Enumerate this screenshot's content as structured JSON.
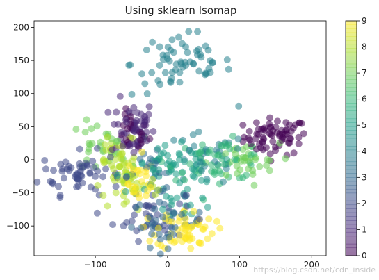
{
  "chart_data": {
    "type": "scatter",
    "title": "Using sklearn Isomap",
    "xlabel": "",
    "ylabel": "",
    "xlim": [
      -185,
      220
    ],
    "ylim": [
      -145,
      210
    ],
    "xticks": [
      -100,
      0,
      100,
      200
    ],
    "yticks": [
      -100,
      -50,
      0,
      50,
      100,
      150,
      200
    ],
    "colorbar": {
      "cmap": "viridis",
      "range": [
        0,
        9
      ],
      "ticks": [
        0,
        1,
        2,
        3,
        4,
        5,
        6,
        7,
        8,
        9
      ],
      "colors": [
        "#440154",
        "#482878",
        "#3e4989",
        "#31688e",
        "#26828e",
        "#1f9e89",
        "#35b779",
        "#6ece58",
        "#b5de2b",
        "#fde725"
      ]
    },
    "point_alpha": 0.55,
    "clusters": [
      {
        "digit": 0,
        "center": [
          150,
          35
        ],
        "spread": [
          22,
          14
        ],
        "count": 70
      },
      {
        "digit": 0,
        "center": [
          -50,
          40
        ],
        "spread": [
          12,
          15
        ],
        "count": 25
      },
      {
        "digit": 1,
        "center": [
          -48,
          48
        ],
        "spread": [
          15,
          22
        ],
        "count": 55
      },
      {
        "digit": 2,
        "center": [
          -120,
          -20
        ],
        "spread": [
          28,
          16
        ],
        "count": 60
      },
      {
        "digit": 2,
        "center": [
          -25,
          -85
        ],
        "spread": [
          25,
          18
        ],
        "count": 35
      },
      {
        "digit": 3,
        "center": [
          0,
          -95
        ],
        "spread": [
          25,
          18
        ],
        "count": 45
      },
      {
        "digit": 3,
        "center": [
          -20,
          -20
        ],
        "spread": [
          20,
          15
        ],
        "count": 20
      },
      {
        "digit": 4,
        "center": [
          20,
          145
        ],
        "spread": [
          35,
          25
        ],
        "count": 65
      },
      {
        "digit": 4,
        "center": [
          50,
          0
        ],
        "spread": [
          30,
          20
        ],
        "count": 30
      },
      {
        "digit": 5,
        "center": [
          10,
          -10
        ],
        "spread": [
          30,
          15
        ],
        "count": 50
      },
      {
        "digit": 5,
        "center": [
          25,
          -60
        ],
        "spread": [
          20,
          15
        ],
        "count": 20
      },
      {
        "digit": 6,
        "center": [
          70,
          0
        ],
        "spread": [
          35,
          15
        ],
        "count": 55
      },
      {
        "digit": 7,
        "center": [
          -95,
          20
        ],
        "spread": [
          20,
          18
        ],
        "count": 30
      },
      {
        "digit": 7,
        "center": [
          105,
          -5
        ],
        "spread": [
          25,
          15
        ],
        "count": 35
      },
      {
        "digit": 8,
        "center": [
          -55,
          -30
        ],
        "spread": [
          20,
          25
        ],
        "count": 55
      },
      {
        "digit": 8,
        "center": [
          -70,
          20
        ],
        "spread": [
          15,
          15
        ],
        "count": 20
      },
      {
        "digit": 9,
        "center": [
          25,
          -105
        ],
        "spread": [
          20,
          15
        ],
        "count": 60
      },
      {
        "digit": 9,
        "center": [
          -45,
          -35
        ],
        "spread": [
          15,
          20
        ],
        "count": 25
      }
    ]
  },
  "watermark": "https://blog.csdn.net/cdn_inside"
}
